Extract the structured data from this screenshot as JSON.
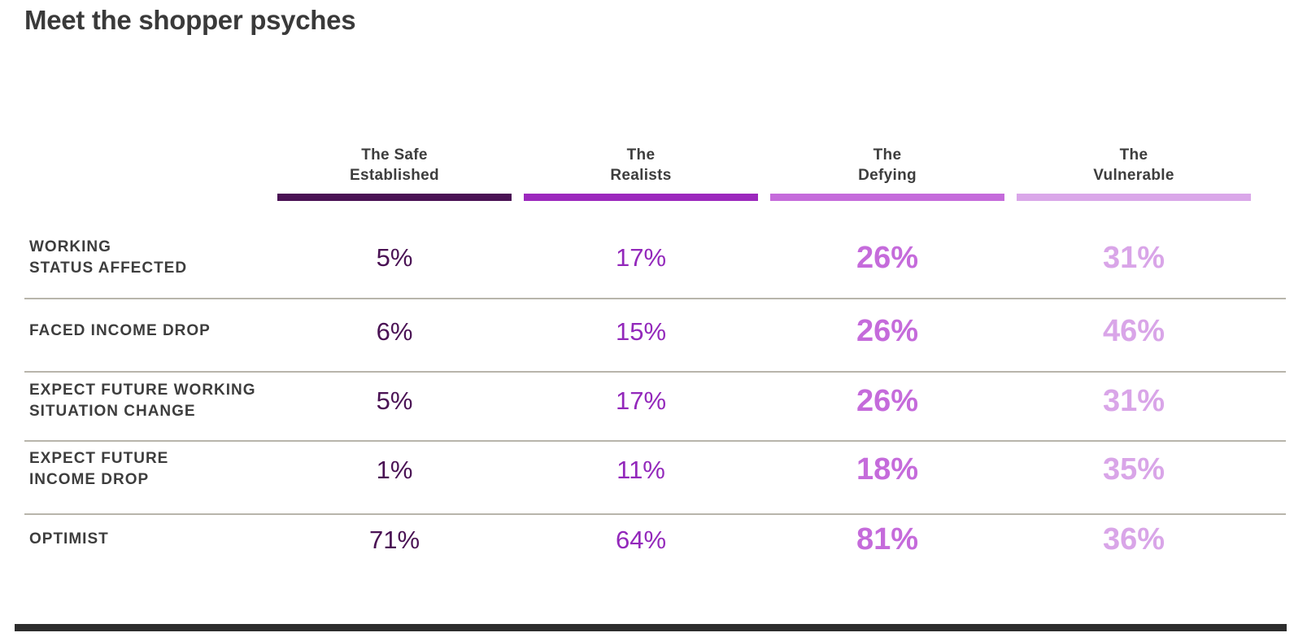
{
  "title": "Meet the shopper psyches",
  "colors": {
    "title_text": "#3a3a3a",
    "label_text": "#3d3d3d",
    "separator_line": "#b8b5ab",
    "bottom_bar": "#2d2d2d",
    "column_accents": [
      "#4a1254",
      "#9c28bd",
      "#c56bdb",
      "#daa7e9"
    ]
  },
  "table": {
    "columns": [
      {
        "line1": "The Safe",
        "line2": "Established",
        "color": "#4a1254"
      },
      {
        "line1": "The",
        "line2": "Realists",
        "color": "#9c28bd"
      },
      {
        "line1": "The",
        "line2": "Defying",
        "color": "#c56bdb"
      },
      {
        "line1": "The",
        "line2": "Vulnerable",
        "color": "#daa7e9"
      }
    ],
    "rows": [
      {
        "line1": "WORKING",
        "line2": "STATUS AFFECTED",
        "values": [
          "5%",
          "17%",
          "26%",
          "31%"
        ]
      },
      {
        "line1": "FACED INCOME DROP",
        "line2": "",
        "values": [
          "6%",
          "15%",
          "26%",
          "46%"
        ]
      },
      {
        "line1": "EXPECT FUTURE WORKING",
        "line2": "SITUATION CHANGE",
        "values": [
          "5%",
          "17%",
          "26%",
          "31%"
        ]
      },
      {
        "line1": "EXPECT FUTURE",
        "line2": "INCOME DROP",
        "values": [
          "1%",
          "11%",
          "18%",
          "35%"
        ]
      },
      {
        "line1": "OPTIMIST",
        "line2": "",
        "values": [
          "71%",
          "64%",
          "81%",
          "36%"
        ]
      }
    ]
  },
  "chart_data": {
    "type": "table",
    "title": "Meet the shopper psyches",
    "columns": [
      "The Safe Established",
      "The Realists",
      "The Defying",
      "The Vulnerable"
    ],
    "column_colors": [
      "#4a1254",
      "#9c28bd",
      "#c56bdb",
      "#daa7e9"
    ],
    "rows": [
      {
        "label": "WORKING STATUS AFFECTED",
        "values_pct": [
          5,
          17,
          26,
          31
        ]
      },
      {
        "label": "FACED INCOME DROP",
        "values_pct": [
          6,
          15,
          26,
          46
        ]
      },
      {
        "label": "EXPECT FUTURE WORKING SITUATION CHANGE",
        "values_pct": [
          5,
          17,
          26,
          31
        ]
      },
      {
        "label": "EXPECT FUTURE INCOME DROP",
        "values_pct": [
          1,
          11,
          18,
          35
        ]
      },
      {
        "label": "OPTIMIST",
        "values_pct": [
          71,
          64,
          81,
          36
        ]
      }
    ],
    "units": "percent",
    "legend_position": "none",
    "grid": "horizontal-separators"
  }
}
